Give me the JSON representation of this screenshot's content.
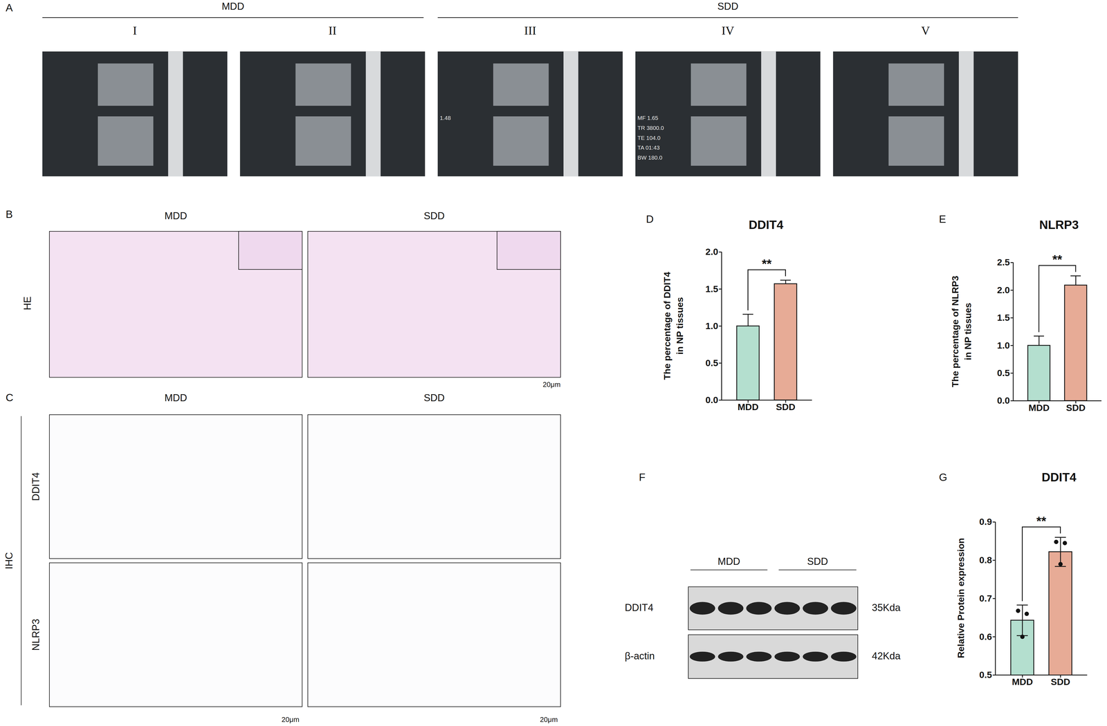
{
  "figure": {
    "panels": {
      "A": {
        "label": "A",
        "groups": [
          {
            "name": "MDD",
            "images": [
              {
                "numeral": "I",
                "overlay": []
              },
              {
                "numeral": "II",
                "overlay": []
              }
            ]
          },
          {
            "name": "SDD",
            "images": [
              {
                "numeral": "III",
                "overlay": [
                  "1.48"
                ]
              },
              {
                "numeral": "IV",
                "overlay": [
                  "MF 1.65",
                  "TR 3800.0",
                  "TE 104.0",
                  "TA 01:43",
                  "BW 180.0"
                ]
              },
              {
                "numeral": "V",
                "overlay": []
              }
            ]
          }
        ]
      },
      "B": {
        "label": "B",
        "row_label": "HE",
        "columns": [
          "MDD",
          "SDD"
        ],
        "scale_bar": "20μm"
      },
      "C": {
        "label": "C",
        "group_label": "IHC",
        "rows": [
          "DDIT4",
          "NLRP3"
        ],
        "columns": [
          "MDD",
          "SDD"
        ],
        "scale_bars": [
          "20μm",
          "20μm"
        ]
      },
      "F": {
        "label": "F",
        "groups": [
          "MDD",
          "SDD"
        ],
        "bands": [
          {
            "name": "DDIT4",
            "size": "35Kda"
          },
          {
            "name": "β-actin",
            "size": "42Kda"
          }
        ]
      }
    }
  },
  "chart_data": [
    {
      "panel": "D",
      "type": "bar",
      "title": "DDIT4",
      "y_label": [
        "The percentage of DDIT4",
        "in NP tissues"
      ],
      "categories": [
        "MDD",
        "SDD"
      ],
      "values": [
        1.0,
        1.57
      ],
      "errors": [
        0.16,
        0.05
      ],
      "colors": [
        "#b4dfcf",
        "#e7ab96"
      ],
      "significance": "**",
      "ylim": [
        0,
        2.0
      ],
      "yticks": [
        {
          "value": 0,
          "label": "0.0"
        },
        0.5,
        {
          "value": 1,
          "label": "1.0"
        },
        1.5,
        {
          "value": 2,
          "label": "2.0"
        }
      ]
    },
    {
      "panel": "E",
      "type": "bar",
      "title": "NLRP3",
      "y_label": [
        "The percentage of NLRP3",
        "in NP tissues"
      ],
      "categories": [
        "MDD",
        "SDD"
      ],
      "values": [
        1.0,
        2.09
      ],
      "errors": [
        0.17,
        0.17
      ],
      "colors": [
        "#b4dfcf",
        "#e7ab96"
      ],
      "significance": "**",
      "ylim": [
        0,
        2.5
      ],
      "yticks": [
        {
          "value": 0,
          "label": "0.0"
        },
        0.5,
        {
          "value": 1,
          "label": "1.0"
        },
        1.5,
        {
          "value": 2,
          "label": "2.0"
        },
        2.5
      ]
    },
    {
      "panel": "G",
      "type": "bar",
      "title": "DDIT4",
      "y_label": [
        "Relative Protein expression"
      ],
      "categories": [
        "MDD",
        "SDD"
      ],
      "values": [
        0.643,
        0.822
      ],
      "errors": [
        0.04,
        0.038
      ],
      "points": [
        [
          0.668,
          0.66,
          0.6
        ],
        [
          0.848,
          0.845,
          0.79
        ]
      ],
      "colors": [
        "#b4dfcf",
        "#e7ab96"
      ],
      "significance": "**",
      "ylim": [
        0.5,
        0.9
      ],
      "yticks": [
        0.5,
        0.6,
        0.7,
        0.8,
        0.9
      ]
    }
  ]
}
